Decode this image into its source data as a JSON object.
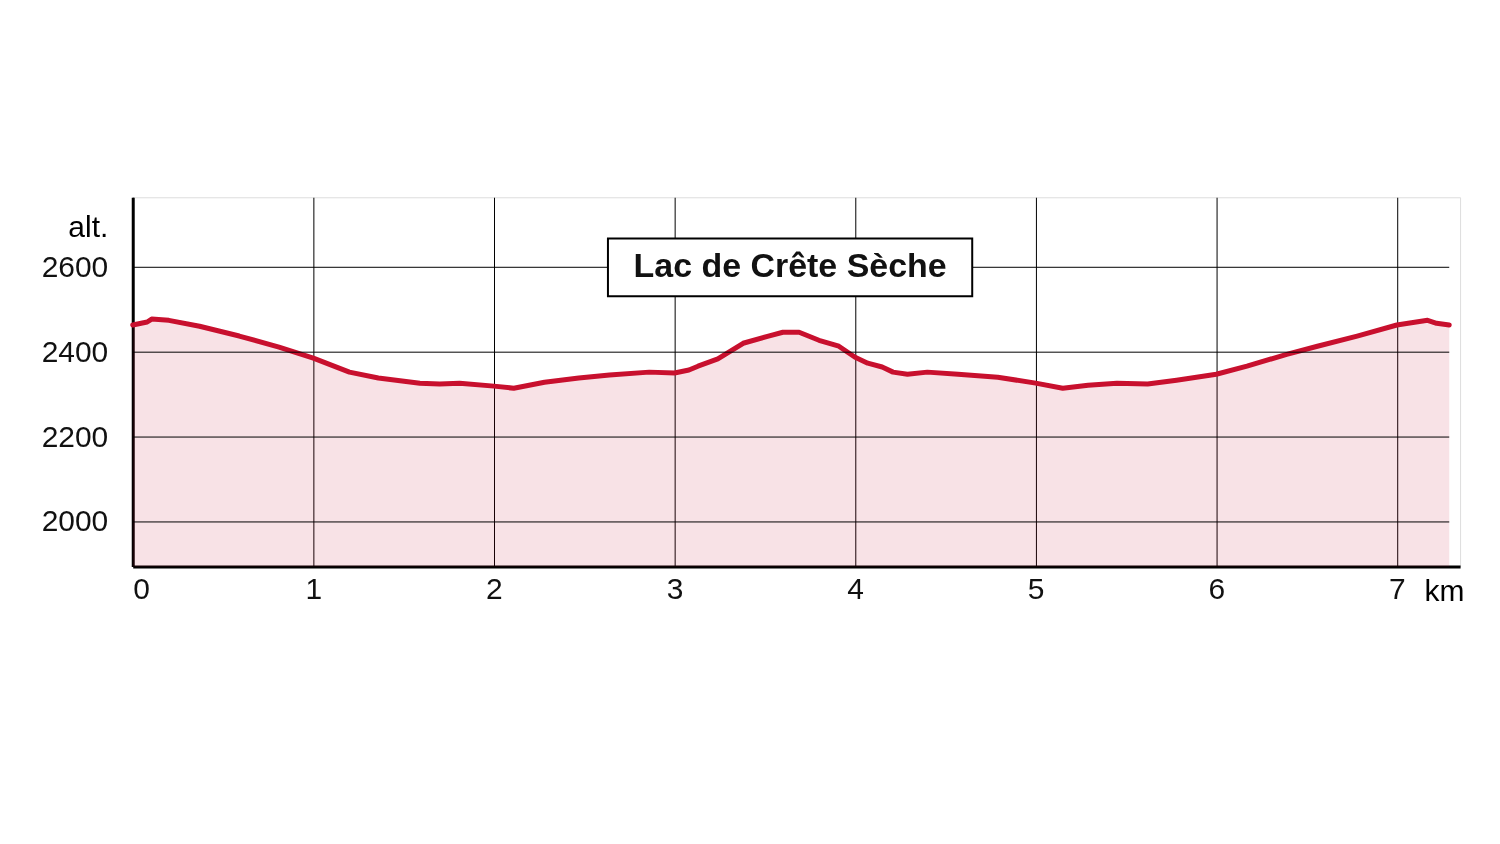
{
  "chart_data": {
    "type": "area",
    "xlabel": "km",
    "ylabel": "alt.",
    "x": [
      0,
      0.08,
      0.105,
      0.2,
      0.37,
      0.59,
      0.81,
      1,
      1.2,
      1.36,
      1.59,
      1.7,
      1.81,
      2,
      2.11,
      2.28,
      2.47,
      2.64,
      2.86,
      3,
      3.08,
      3.13,
      3.24,
      3.38,
      3.52,
      3.6,
      3.69,
      3.8,
      3.91,
      4,
      4.07,
      4.15,
      4.21,
      4.29,
      4.4,
      4.57,
      4.79,
      5,
      5.15,
      5.29,
      5.45,
      5.62,
      5.78,
      6,
      6.17,
      6.39,
      6.56,
      6.78,
      7,
      7.17,
      7.22,
      7.29
    ],
    "series": [
      {
        "color": "#c8102e",
        "values": [
          2464,
          2471,
          2478,
          2475,
          2461,
          2438,
          2412,
          2386,
          2353,
          2339,
          2327,
          2325,
          2327,
          2320,
          2315,
          2329,
          2339,
          2346,
          2353,
          2351,
          2358,
          2367,
          2384,
          2421,
          2438,
          2447,
          2447,
          2428,
          2414,
          2388,
          2374,
          2365,
          2353,
          2348,
          2353,
          2348,
          2341,
          2327,
          2315,
          2322,
          2327,
          2325,
          2334,
          2348,
          2367,
          2395,
          2414,
          2438,
          2464,
          2475,
          2468,
          2464
        ]
      }
    ],
    "xlim": [
      0,
      7.35
    ],
    "ylim": [
      1895,
      2765
    ],
    "xticks": [
      0,
      1,
      2,
      3,
      4,
      5,
      6,
      7
    ],
    "yticks": [
      2000,
      2200,
      2400,
      2600
    ],
    "grid": true,
    "marker": "none",
    "annotations": [
      {
        "text": "Lac de Crête Sèche",
        "x": 3.64,
        "y": 2447
      }
    ]
  }
}
